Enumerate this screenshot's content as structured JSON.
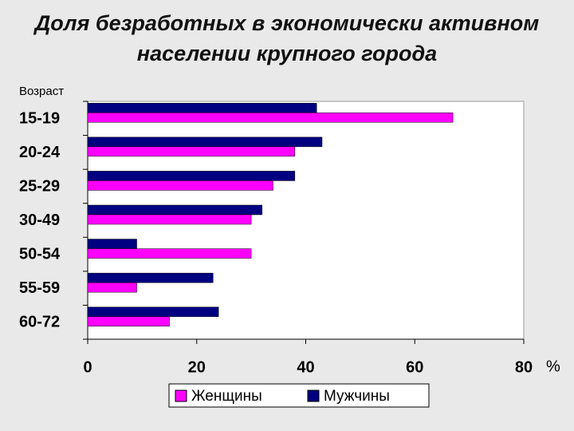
{
  "chart_data": {
    "type": "bar",
    "orientation": "horizontal",
    "title": "Доля безработных в экономически активном населении крупного города",
    "ylabel": "Возраст",
    "xlabel": "%",
    "categories": [
      "15-19",
      "20-24",
      "25-29",
      "30-49",
      "50-54",
      "55-59",
      "60-72"
    ],
    "series": [
      {
        "name": "Женщины",
        "color": "#ff00ff",
        "values": [
          67,
          38,
          34,
          30,
          30,
          9,
          15
        ]
      },
      {
        "name": "Мужчины",
        "color": "#000080",
        "values": [
          42,
          43,
          38,
          32,
          9,
          23,
          24
        ]
      }
    ],
    "xlim": [
      0,
      80
    ],
    "xticks": [
      0,
      20,
      40,
      60,
      80
    ],
    "grid": false,
    "legend": "bottom"
  }
}
